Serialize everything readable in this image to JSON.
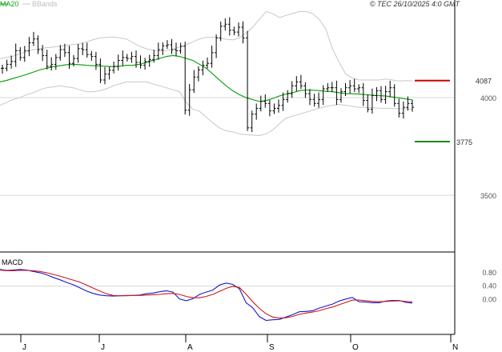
{
  "header": {
    "legend_ma": "MA20",
    "legend_bb": "BBands",
    "copyright": "© TEC 26/10/2025 4:0 GMT"
  },
  "colors": {
    "ma": "#1aa31a",
    "bbands": "#c8c8c8",
    "bars": "#000000",
    "resistance": "#cc0000",
    "support": "#1a8a1a",
    "macd": "#1a1acc",
    "signal": "#cc1a1a",
    "grid": "#d8d8d8"
  },
  "chart_data": [
    {
      "type": "ohlc",
      "y_ticks": [
        4000,
        3500
      ],
      "y_range": [
        3210,
        4450
      ],
      "x_ticks": [
        "J",
        "J",
        "A",
        "S",
        "O",
        "N"
      ],
      "levels": [
        {
          "label": "4087",
          "value": 4087,
          "role": "resistance"
        },
        {
          "label": "3775",
          "value": 3775,
          "role": "support"
        }
      ],
      "close": [
        4150,
        4170,
        4185,
        4240,
        4205,
        4240,
        4280,
        4300,
        4245,
        4215,
        4160,
        4170,
        4205,
        4245,
        4230,
        4175,
        4200,
        4250,
        4245,
        4220,
        4210,
        4170,
        4090,
        4120,
        4140,
        4160,
        4190,
        4205,
        4200,
        4210,
        4180,
        4165,
        4185,
        4195,
        4215,
        4245,
        4265,
        4270,
        4245,
        4240,
        4262,
        3935,
        4040,
        4105,
        4142,
        4165,
        4175,
        4230,
        4305,
        4365,
        4375,
        4345,
        4335,
        4360,
        4305,
        3845,
        3915,
        3945,
        3980,
        3970,
        3932,
        3945,
        3960,
        3990,
        4020,
        4060,
        4080,
        4060,
        4020,
        3990,
        3970,
        3990,
        4045,
        4050,
        4050,
        3990,
        4030,
        4050,
        4060,
        4045,
        4050,
        3985,
        3940,
        4010,
        4035,
        3990,
        4030,
        4050,
        3970,
        3920,
        3950,
        3970,
        3950
      ],
      "bb_upper": [
        4200,
        4205,
        4212,
        4225,
        4235,
        4245,
        4250,
        4255,
        4258,
        4262,
        4268,
        4272,
        4275,
        4285,
        4296,
        4305,
        4308,
        4310,
        4305,
        4300,
        4280,
        4262,
        4250,
        4242,
        4238,
        4240,
        4248,
        4258,
        4270,
        4285,
        4300,
        4308,
        4310,
        4305,
        4298,
        4295,
        4305,
        4330,
        4360,
        4400,
        4440,
        4430,
        4410,
        4420,
        4430,
        4440,
        4440,
        4430,
        4400,
        4350,
        4250,
        4180,
        4120,
        4100,
        4090,
        4090,
        4090,
        4090,
        4095,
        4090,
        4085,
        4087,
        4085
      ],
      "ma20": [
        4080,
        4088,
        4098,
        4108,
        4118,
        4130,
        4142,
        4150,
        4158,
        4163,
        4168,
        4170,
        4168,
        4165,
        4163,
        4162,
        4160,
        4158,
        4160,
        4165,
        4165,
        4170,
        4180,
        4190,
        4200,
        4210,
        4215,
        4210,
        4200,
        4190,
        4170,
        4150,
        4120,
        4090,
        4060,
        4035,
        4015,
        4000,
        3990,
        3980,
        3985,
        3995,
        4008,
        4018,
        4025,
        4035,
        4038,
        4038,
        4035,
        4032,
        4030,
        4025,
        4020,
        4020,
        4018,
        4015,
        4012,
        4010,
        4008,
        4003,
        3998,
        3993,
        3988
      ],
      "bb_lower": [
        3960,
        3975,
        3990,
        4000,
        4015,
        4025,
        4040,
        4050,
        4055,
        4060,
        4055,
        4050,
        4040,
        4030,
        4030,
        4035,
        4045,
        4060,
        4070,
        4080,
        4080,
        4080,
        4080,
        4070,
        4060,
        4050,
        4040,
        4030,
        3975,
        3940,
        3930,
        3900,
        3870,
        3845,
        3830,
        3825,
        3815,
        3810,
        3808,
        3805,
        3815,
        3835,
        3865,
        3895,
        3905,
        3915,
        3925,
        3935,
        3945,
        3955,
        3960,
        3965,
        3960,
        3955,
        3950,
        3950,
        3948,
        3946,
        3945,
        3944,
        3943,
        3942,
        3940
      ]
    },
    {
      "type": "line",
      "title": "MACD",
      "y_ticks": [
        "0.80",
        "0.40",
        "0.00"
      ],
      "y_range": [
        -1.05,
        1.35
      ],
      "series": [
        {
          "role": "macd",
          "values": [
            0.9,
            0.87,
            0.88,
            0.9,
            0.88,
            0.84,
            0.8,
            0.74,
            0.66,
            0.59,
            0.51,
            0.44,
            0.35,
            0.25,
            0.18,
            0.13,
            0.11,
            0.1,
            0.11,
            0.12,
            0.12,
            0.13,
            0.17,
            0.19,
            0.23,
            0.26,
            0.22,
            0.01,
            -0.04,
            0.02,
            0.15,
            0.22,
            0.28,
            0.43,
            0.49,
            0.45,
            0.32,
            -0.1,
            -0.25,
            -0.52,
            -0.63,
            -0.61,
            -0.6,
            -0.53,
            -0.46,
            -0.37,
            -0.36,
            -0.34,
            -0.26,
            -0.2,
            -0.14,
            -0.05,
            0.01,
            0.06,
            -0.07,
            -0.08,
            -0.1,
            -0.1,
            -0.05,
            -0.03,
            -0.03,
            -0.09,
            -0.11
          ]
        },
        {
          "role": "signal",
          "values": [
            0.88,
            0.86,
            0.86,
            0.87,
            0.87,
            0.86,
            0.84,
            0.8,
            0.75,
            0.7,
            0.64,
            0.58,
            0.52,
            0.43,
            0.34,
            0.25,
            0.17,
            0.12,
            0.11,
            0.11,
            0.12,
            0.12,
            0.13,
            0.14,
            0.15,
            0.17,
            0.18,
            0.15,
            0.09,
            0.05,
            0.05,
            0.09,
            0.15,
            0.24,
            0.33,
            0.39,
            0.36,
            0.16,
            -0.07,
            -0.27,
            -0.43,
            -0.53,
            -0.56,
            -0.55,
            -0.51,
            -0.45,
            -0.41,
            -0.38,
            -0.34,
            -0.28,
            -0.23,
            -0.16,
            -0.09,
            -0.02,
            -0.02,
            -0.04,
            -0.06,
            -0.07,
            -0.06,
            -0.05,
            -0.04,
            -0.06,
            -0.08
          ]
        }
      ]
    }
  ]
}
